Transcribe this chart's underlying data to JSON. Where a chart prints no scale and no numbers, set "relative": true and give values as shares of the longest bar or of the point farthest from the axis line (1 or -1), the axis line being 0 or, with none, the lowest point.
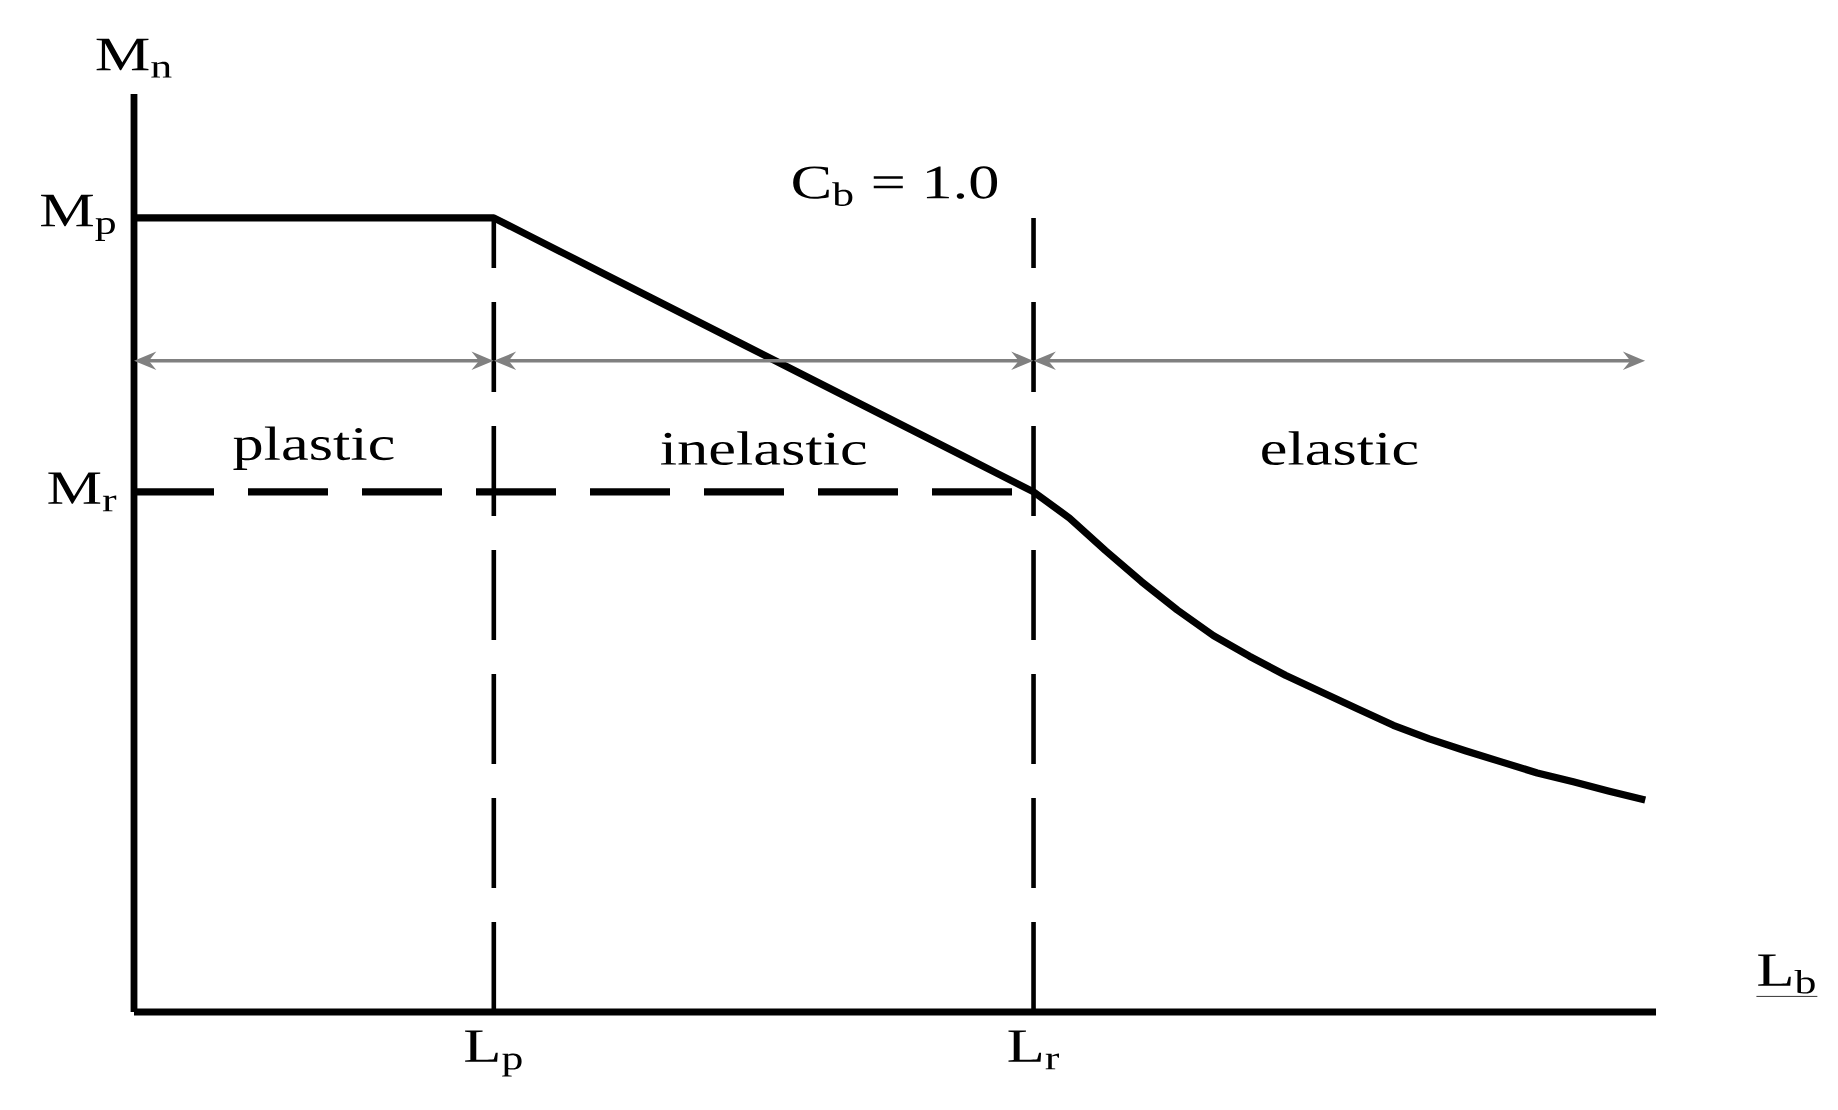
{
  "chart_data": {
    "type": "line",
    "relative": true,
    "xlabel": "L$_{b}$",
    "ylabel": "M$_{n}$",
    "marker": "none",
    "line_style": "solid",
    "categories": [
      null,
      null,
      null,
      null,
      null,
      null,
      null,
      null,
      null,
      null,
      "L$_{p}$",
      null,
      null,
      null,
      null,
      null,
      null,
      null,
      null,
      null,
      null,
      null,
      null,
      null,
      null,
      "L$_{r}$",
      null,
      null,
      null,
      null,
      null,
      null,
      null,
      null,
      null,
      null,
      null,
      null,
      null,
      null,
      null,
      null,
      null
    ],
    "series": [
      {
        "name": "M$_{p}$",
        "color": "#000000",
        "values": [
          1,
          1,
          1,
          1,
          1,
          1,
          1,
          1,
          1,
          1,
          1,
          0.977,
          0.954,
          0.931,
          0.908,
          0.885,
          0.862,
          0.839,
          0.816,
          0.793,
          0.77,
          0.747,
          0.724,
          0.701,
          0.678,
          0.655,
          0.622,
          0.581,
          0.542,
          0.506,
          0.474,
          0.448,
          0.424,
          0.403,
          0.382,
          0.361,
          0.344,
          0.329,
          0.315,
          0.301,
          0.29,
          0.278,
          0.267
        ]
      },
      {
        "name": "M$_{r}$",
        "color": "#000000",
        "line_style": "dashed",
        "values": [
          0.655,
          0.655,
          0.655,
          0.655,
          0.655,
          0.655,
          0.655,
          0.655,
          0.655,
          0.655,
          0.655,
          0.655,
          0.655,
          0.655,
          0.655,
          0.655,
          0.655,
          0.655,
          0.655,
          0.655,
          0.655,
          0.655,
          0.655,
          0.655,
          0.655,
          0.655,
          null,
          null,
          null,
          null,
          null,
          null,
          null,
          null,
          null,
          null,
          null,
          null,
          null,
          null,
          null,
          null,
          null
        ]
      }
    ],
    "ref_lines": [
      {
        "axis": "x",
        "value": "L$_{p}$",
        "color": "#000000",
        "line_style": "dashed"
      },
      {
        "axis": "x",
        "value": "L$_{r}$",
        "color": "#000000",
        "line_style": "dashed"
      }
    ],
    "annotations": [
      "C$_{b}$ = 1.0",
      "plastic",
      "inelastic",
      "elastic"
    ]
  }
}
